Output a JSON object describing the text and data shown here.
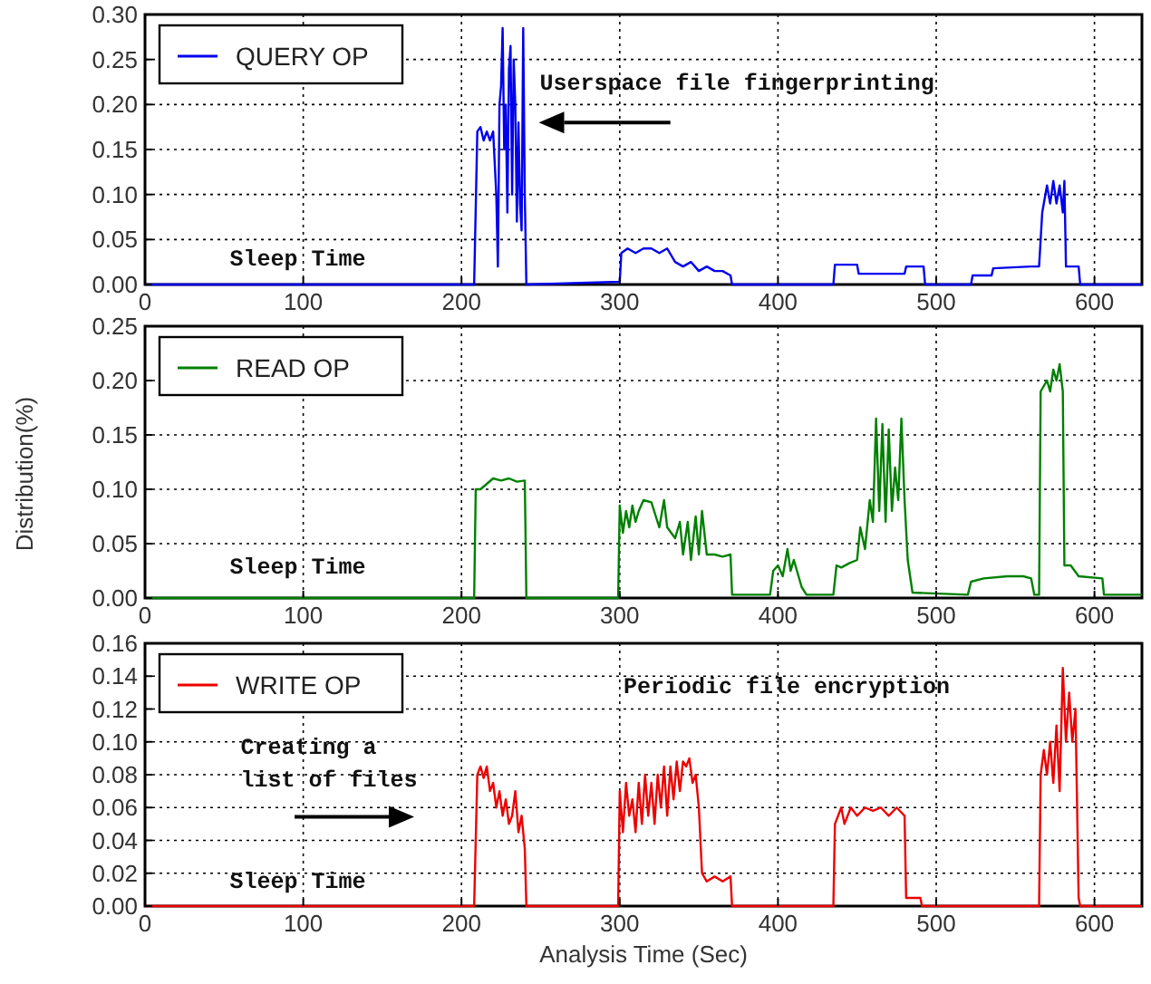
{
  "chart_data": [
    {
      "type": "line",
      "xlim": [
        0,
        630
      ],
      "xticks": [
        0,
        100,
        200,
        300,
        400,
        500,
        600
      ],
      "ylim": [
        0,
        0.3
      ],
      "yticks": [
        {
          "value": 0,
          "label": "0.00"
        },
        {
          "value": 0.05,
          "label": "0.05"
        },
        {
          "value": 0.1,
          "label": "0.10"
        },
        {
          "value": 0.15,
          "label": "0.15"
        },
        {
          "value": 0.2,
          "label": "0.20"
        },
        {
          "value": 0.25,
          "label": "0.25"
        },
        {
          "value": 0.3,
          "label": "0.30"
        }
      ],
      "grid": true,
      "legend": "top left",
      "annotations": [
        "Userspace file fingerprinting",
        "Sleep Time"
      ],
      "series": [
        {
          "name": "QUERY OP",
          "color": "#0000ee",
          "x": [
            0,
            208,
            210,
            212,
            214,
            216,
            218,
            220,
            222,
            223,
            224,
            225,
            226,
            227,
            228,
            229,
            230,
            231,
            232,
            233,
            234,
            235,
            236,
            237,
            238,
            239,
            240,
            241,
            300,
            301,
            305,
            310,
            315,
            320,
            325,
            330,
            335,
            340,
            345,
            350,
            355,
            360,
            365,
            370,
            371,
            435,
            436,
            450,
            451,
            480,
            481,
            492,
            493,
            522,
            523,
            535,
            536,
            560,
            565,
            567,
            570,
            572,
            574,
            576,
            578,
            580,
            581,
            582,
            590,
            591,
            630
          ],
          "values": [
            0,
            0,
            0.17,
            0.175,
            0.16,
            0.17,
            0.16,
            0.17,
            0.1,
            0.02,
            0.2,
            0.22,
            0.285,
            0.15,
            0.2,
            0.08,
            0.24,
            0.265,
            0.1,
            0.25,
            0.2,
            0.07,
            0.18,
            0.09,
            0.06,
            0.285,
            0.1,
            0,
            0.003,
            0.035,
            0.04,
            0.035,
            0.04,
            0.04,
            0.035,
            0.04,
            0.025,
            0.02,
            0.025,
            0.015,
            0.02,
            0.015,
            0.015,
            0.01,
            0,
            0,
            0.022,
            0.022,
            0.012,
            0.012,
            0.02,
            0.02,
            0,
            0,
            0.01,
            0.01,
            0.018,
            0.02,
            0.02,
            0.08,
            0.11,
            0.09,
            0.115,
            0.09,
            0.11,
            0.08,
            0.115,
            0.02,
            0.02,
            0,
            0
          ]
        }
      ]
    },
    {
      "type": "line",
      "ylabel": "Distribution(%)",
      "xlim": [
        0,
        630
      ],
      "xticks": [
        0,
        100,
        200,
        300,
        400,
        500,
        600
      ],
      "ylim": [
        0,
        0.25
      ],
      "yticks": [
        {
          "value": 0,
          "label": "0.00"
        },
        {
          "value": 0.05,
          "label": "0.05"
        },
        {
          "value": 0.1,
          "label": "0.10"
        },
        {
          "value": 0.15,
          "label": "0.15"
        },
        {
          "value": 0.2,
          "label": "0.20"
        },
        {
          "value": 0.25,
          "label": "0.25"
        }
      ],
      "grid": true,
      "legend": "top left",
      "annotations": [
        "Sleep Time"
      ],
      "series": [
        {
          "name": "READ OP",
          "color": "#008000",
          "x": [
            0,
            208,
            209,
            212,
            216,
            220,
            225,
            230,
            235,
            240,
            241,
            299,
            300,
            302,
            304,
            306,
            308,
            310,
            312,
            315,
            320,
            325,
            328,
            330,
            335,
            338,
            340,
            343,
            345,
            348,
            350,
            352,
            355,
            360,
            365,
            370,
            371,
            395,
            397,
            400,
            403,
            406,
            408,
            410,
            415,
            418,
            435,
            437,
            440,
            445,
            450,
            452,
            455,
            458,
            460,
            462,
            464,
            466,
            468,
            470,
            472,
            474,
            476,
            478,
            480,
            482,
            485,
            520,
            522,
            530,
            545,
            555,
            560,
            562,
            565,
            566,
            570,
            572,
            574,
            576,
            578,
            580,
            581,
            585,
            590,
            605,
            606,
            630
          ],
          "values": [
            0,
            0,
            0.1,
            0.1,
            0.105,
            0.11,
            0.108,
            0.11,
            0.107,
            0.108,
            0,
            0,
            0.085,
            0.06,
            0.08,
            0.065,
            0.085,
            0.07,
            0.08,
            0.09,
            0.088,
            0.065,
            0.09,
            0.065,
            0.055,
            0.07,
            0.04,
            0.07,
            0.035,
            0.075,
            0.04,
            0.08,
            0.04,
            0.04,
            0.038,
            0.04,
            0.003,
            0.003,
            0.025,
            0.03,
            0.02,
            0.045,
            0.025,
            0.035,
            0.01,
            0.003,
            0.003,
            0.03,
            0.028,
            0.032,
            0.035,
            0.065,
            0.045,
            0.09,
            0.07,
            0.165,
            0.08,
            0.16,
            0.07,
            0.155,
            0.08,
            0.12,
            0.09,
            0.165,
            0.09,
            0.035,
            0.005,
            0.003,
            0.015,
            0.018,
            0.02,
            0.02,
            0.018,
            0.003,
            0.003,
            0.19,
            0.2,
            0.19,
            0.21,
            0.2,
            0.215,
            0.19,
            0.03,
            0.03,
            0.02,
            0.018,
            0.003,
            0.003
          ]
        }
      ]
    },
    {
      "type": "line",
      "xlabel": "Analysis Time (Sec)",
      "xlim": [
        0,
        630
      ],
      "xticks": [
        0,
        100,
        200,
        300,
        400,
        500,
        600
      ],
      "ylim": [
        0,
        0.16
      ],
      "yticks": [
        {
          "value": 0,
          "label": "0.00"
        },
        {
          "value": 0.02,
          "label": "0.02"
        },
        {
          "value": 0.04,
          "label": "0.04"
        },
        {
          "value": 0.06,
          "label": "0.06"
        },
        {
          "value": 0.08,
          "label": "0.08"
        },
        {
          "value": 0.1,
          "label": "0.10"
        },
        {
          "value": 0.12,
          "label": "0.12"
        },
        {
          "value": 0.14,
          "label": "0.14"
        },
        {
          "value": 0.16,
          "label": "0.16"
        }
      ],
      "grid": true,
      "legend": "top left",
      "annotations": [
        "Periodic file encryption",
        "Creating a\nlist of files",
        "Sleep Time"
      ],
      "series": [
        {
          "name": "WRITE OP",
          "color": "#ee0000",
          "x": [
            0,
            208,
            210,
            212,
            214,
            216,
            218,
            220,
            222,
            224,
            226,
            228,
            230,
            232,
            234,
            236,
            238,
            240,
            241,
            299,
            300,
            302,
            304,
            306,
            308,
            310,
            312,
            314,
            316,
            318,
            320,
            322,
            324,
            326,
            328,
            330,
            332,
            334,
            336,
            338,
            340,
            342,
            344,
            346,
            348,
            350,
            352,
            355,
            360,
            365,
            370,
            371,
            435,
            436,
            440,
            442,
            446,
            450,
            455,
            460,
            465,
            470,
            475,
            480,
            481,
            490,
            491,
            565,
            566,
            568,
            570,
            572,
            574,
            576,
            578,
            580,
            582,
            584,
            586,
            588,
            590,
            591,
            630
          ],
          "values": [
            0,
            0,
            0.08,
            0.085,
            0.078,
            0.085,
            0.07,
            0.075,
            0.06,
            0.07,
            0.055,
            0.065,
            0.05,
            0.055,
            0.07,
            0.045,
            0.055,
            0.035,
            0,
            0,
            0.07,
            0.045,
            0.075,
            0.055,
            0.065,
            0.045,
            0.075,
            0.05,
            0.08,
            0.055,
            0.075,
            0.05,
            0.08,
            0.06,
            0.085,
            0.055,
            0.085,
            0.065,
            0.088,
            0.07,
            0.088,
            0.085,
            0.09,
            0.075,
            0.08,
            0.06,
            0.02,
            0.015,
            0.018,
            0.015,
            0.018,
            0,
            0,
            0.05,
            0.06,
            0.05,
            0.06,
            0.055,
            0.06,
            0.058,
            0.06,
            0.055,
            0.06,
            0.055,
            0.005,
            0.005,
            0,
            0,
            0.08,
            0.095,
            0.08,
            0.1,
            0.075,
            0.11,
            0.07,
            0.145,
            0.1,
            0.13,
            0.1,
            0.12,
            0.005,
            0,
            0
          ]
        }
      ]
    }
  ]
}
